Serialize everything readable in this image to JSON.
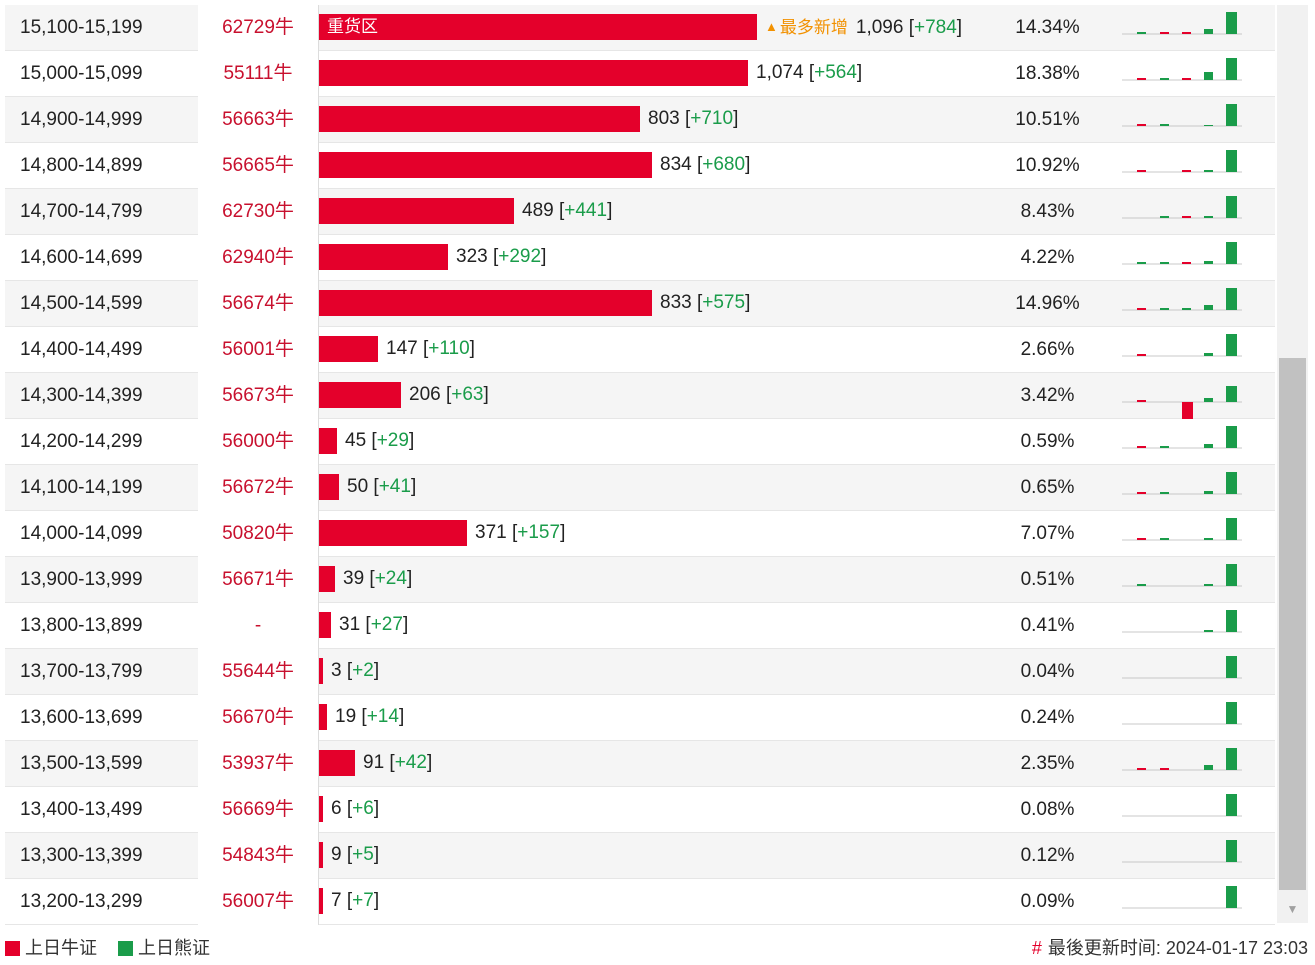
{
  "colors": {
    "bull": "#e4002b",
    "bear": "#1a9c4a",
    "accent": "#f29100"
  },
  "unit_suffix": "牛",
  "rows": [
    {
      "range": "15,100-15,199",
      "code": "62729",
      "qty": "1,096",
      "chg": "+784",
      "pct": "14.34%",
      "value": 1096,
      "tag": "重货区",
      "mark": "最多新增",
      "spark": [
        {
          "t": "g",
          "h": 2
        },
        {
          "t": "r",
          "h": 2
        },
        {
          "t": "r",
          "h": 2
        },
        {
          "t": "g",
          "h": 5
        },
        {
          "t": "g",
          "h": 22
        }
      ]
    },
    {
      "range": "15,000-15,099",
      "code": "55111",
      "qty": "1,074",
      "chg": "+564",
      "pct": "18.38%",
      "value": 1074,
      "spark": [
        {
          "t": "r",
          "h": 2
        },
        {
          "t": "g",
          "h": 2
        },
        {
          "t": "r",
          "h": 2
        },
        {
          "t": "g",
          "h": 8
        },
        {
          "t": "g",
          "h": 22
        }
      ]
    },
    {
      "range": "14,900-14,999",
      "code": "56663",
      "qty": "803",
      "chg": "+710",
      "pct": "10.51%",
      "value": 803,
      "spark": [
        {
          "t": "r",
          "h": 2
        },
        {
          "t": "g",
          "h": 2
        },
        null,
        {
          "t": "g",
          "h": 1
        },
        {
          "t": "g",
          "h": 22
        }
      ]
    },
    {
      "range": "14,800-14,899",
      "code": "56665",
      "qty": "834",
      "chg": "+680",
      "pct": "10.92%",
      "value": 834,
      "spark": [
        {
          "t": "r",
          "h": 2
        },
        null,
        {
          "t": "r",
          "h": 2
        },
        {
          "t": "g",
          "h": 2
        },
        {
          "t": "g",
          "h": 22
        }
      ]
    },
    {
      "range": "14,700-14,799",
      "code": "62730",
      "qty": "489",
      "chg": "+441",
      "pct": "8.43%",
      "value": 489,
      "spark": [
        null,
        {
          "t": "g",
          "h": 2
        },
        {
          "t": "r",
          "h": 2
        },
        {
          "t": "g",
          "h": 2
        },
        {
          "t": "g",
          "h": 22
        }
      ]
    },
    {
      "range": "14,600-14,699",
      "code": "62940",
      "qty": "323",
      "chg": "+292",
      "pct": "4.22%",
      "value": 323,
      "spark": [
        {
          "t": "g",
          "h": 2
        },
        {
          "t": "g",
          "h": 2
        },
        {
          "t": "r",
          "h": 2
        },
        {
          "t": "g",
          "h": 3
        },
        {
          "t": "g",
          "h": 22
        }
      ]
    },
    {
      "range": "14,500-14,599",
      "code": "56674",
      "qty": "833",
      "chg": "+575",
      "pct": "14.96%",
      "value": 833,
      "spark": [
        {
          "t": "r",
          "h": 2
        },
        {
          "t": "g",
          "h": 2
        },
        {
          "t": "g",
          "h": 2
        },
        {
          "t": "g",
          "h": 5
        },
        {
          "t": "g",
          "h": 22
        }
      ]
    },
    {
      "range": "14,400-14,499",
      "code": "56001",
      "qty": "147",
      "chg": "+110",
      "pct": "2.66%",
      "value": 147,
      "spark": [
        {
          "t": "r",
          "h": 2
        },
        null,
        null,
        {
          "t": "g",
          "h": 3
        },
        {
          "t": "g",
          "h": 22
        }
      ]
    },
    {
      "range": "14,300-14,399",
      "code": "56673",
      "qty": "206",
      "chg": "+63",
      "pct": "3.42%",
      "value": 206,
      "spark": [
        {
          "t": "r",
          "h": 2
        },
        null,
        {
          "t": "rd",
          "h": 22
        },
        {
          "t": "g",
          "h": 4
        },
        {
          "t": "g",
          "h": 16
        }
      ]
    },
    {
      "range": "14,200-14,299",
      "code": "56000",
      "qty": "45",
      "chg": "+29",
      "pct": "0.59%",
      "value": 45,
      "spark": [
        {
          "t": "r",
          "h": 2
        },
        {
          "t": "g",
          "h": 2
        },
        null,
        {
          "t": "g",
          "h": 4
        },
        {
          "t": "g",
          "h": 22
        }
      ]
    },
    {
      "range": "14,100-14,199",
      "code": "56672",
      "qty": "50",
      "chg": "+41",
      "pct": "0.65%",
      "value": 50,
      "spark": [
        {
          "t": "r",
          "h": 2
        },
        {
          "t": "g",
          "h": 2
        },
        null,
        {
          "t": "g",
          "h": 3
        },
        {
          "t": "g",
          "h": 22
        }
      ]
    },
    {
      "range": "14,000-14,099",
      "code": "50820",
      "qty": "371",
      "chg": "+157",
      "pct": "7.07%",
      "value": 371,
      "spark": [
        {
          "t": "r",
          "h": 2
        },
        {
          "t": "g",
          "h": 2
        },
        null,
        {
          "t": "g",
          "h": 2
        },
        {
          "t": "g",
          "h": 22
        }
      ]
    },
    {
      "range": "13,900-13,999",
      "code": "56671",
      "qty": "39",
      "chg": "+24",
      "pct": "0.51%",
      "value": 39,
      "spark": [
        {
          "t": "g",
          "h": 2
        },
        null,
        null,
        {
          "t": "g",
          "h": 2
        },
        {
          "t": "g",
          "h": 22
        }
      ]
    },
    {
      "range": "13,800-13,899",
      "code": "-",
      "qty": "31",
      "chg": "+27",
      "pct": "0.41%",
      "value": 31,
      "spark": [
        null,
        null,
        null,
        {
          "t": "g",
          "h": 2
        },
        {
          "t": "g",
          "h": 22
        }
      ]
    },
    {
      "range": "13,700-13,799",
      "code": "55644",
      "qty": "3",
      "chg": "+2",
      "pct": "0.04%",
      "value": 3,
      "spark": [
        null,
        null,
        null,
        null,
        {
          "t": "g",
          "h": 22
        }
      ]
    },
    {
      "range": "13,600-13,699",
      "code": "56670",
      "qty": "19",
      "chg": "+14",
      "pct": "0.24%",
      "value": 19,
      "spark": [
        null,
        null,
        null,
        null,
        {
          "t": "g",
          "h": 22
        }
      ]
    },
    {
      "range": "13,500-13,599",
      "code": "53937",
      "qty": "91",
      "chg": "+42",
      "pct": "2.35%",
      "value": 91,
      "spark": [
        {
          "t": "r",
          "h": 2
        },
        {
          "t": "r",
          "h": 2
        },
        null,
        {
          "t": "g",
          "h": 5
        },
        {
          "t": "g",
          "h": 22
        }
      ]
    },
    {
      "range": "13,400-13,499",
      "code": "56669",
      "qty": "6",
      "chg": "+6",
      "pct": "0.08%",
      "value": 6,
      "spark": [
        null,
        null,
        null,
        null,
        {
          "t": "g",
          "h": 22
        }
      ]
    },
    {
      "range": "13,300-13,399",
      "code": "54843",
      "qty": "9",
      "chg": "+5",
      "pct": "0.12%",
      "value": 9,
      "spark": [
        null,
        null,
        null,
        null,
        {
          "t": "g",
          "h": 22
        }
      ]
    },
    {
      "range": "13,200-13,299",
      "code": "56007",
      "qty": "7",
      "chg": "+7",
      "pct": "0.09%",
      "value": 7,
      "spark": [
        null,
        null,
        null,
        null,
        {
          "t": "g",
          "h": 22
        }
      ]
    }
  ],
  "legend": {
    "bull_label": "上日牛证",
    "bear_label": "上日熊证"
  },
  "footer": {
    "hash": "#",
    "updated_label": "最後更新时间: 2024-01-17 23:03"
  },
  "scrollbar": {
    "arrow": "▼"
  }
}
